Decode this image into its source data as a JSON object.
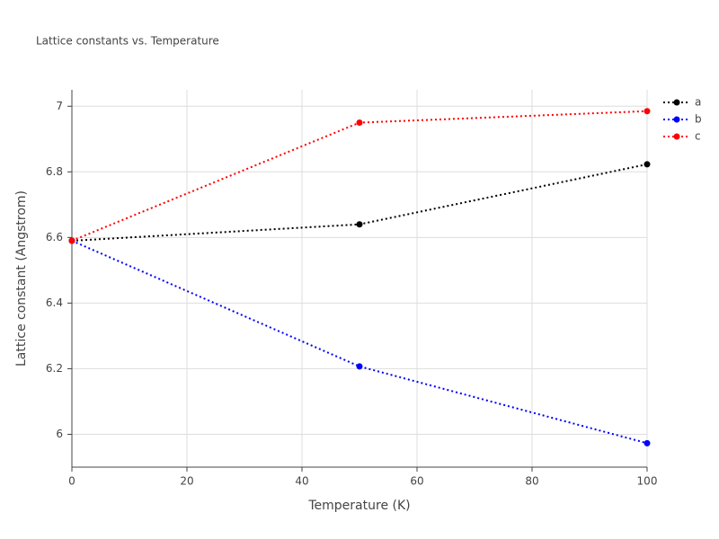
{
  "chart_data": {
    "type": "line",
    "title": "Lattice constants vs. Temperature",
    "x_label": "Temperature (K)",
    "y_label": "Lattice constant (Angstrom)",
    "x": [
      0,
      50,
      100
    ],
    "series": [
      {
        "name": "a",
        "color": "#000000",
        "values": [
          6.59,
          6.64,
          6.823
        ]
      },
      {
        "name": "b",
        "color": "#0000ff",
        "values": [
          6.59,
          6.207,
          5.973
        ]
      },
      {
        "name": "c",
        "color": "#ff0000",
        "values": [
          6.59,
          6.95,
          6.985
        ]
      }
    ],
    "xlim": [
      0,
      100
    ],
    "xticks": [
      0,
      20,
      40,
      60,
      80,
      100
    ],
    "ylim": [
      5.9,
      7.05
    ],
    "yticks": [
      6,
      6.2,
      6.4,
      6.6,
      6.8,
      7
    ],
    "grid": true,
    "legend": "right"
  }
}
